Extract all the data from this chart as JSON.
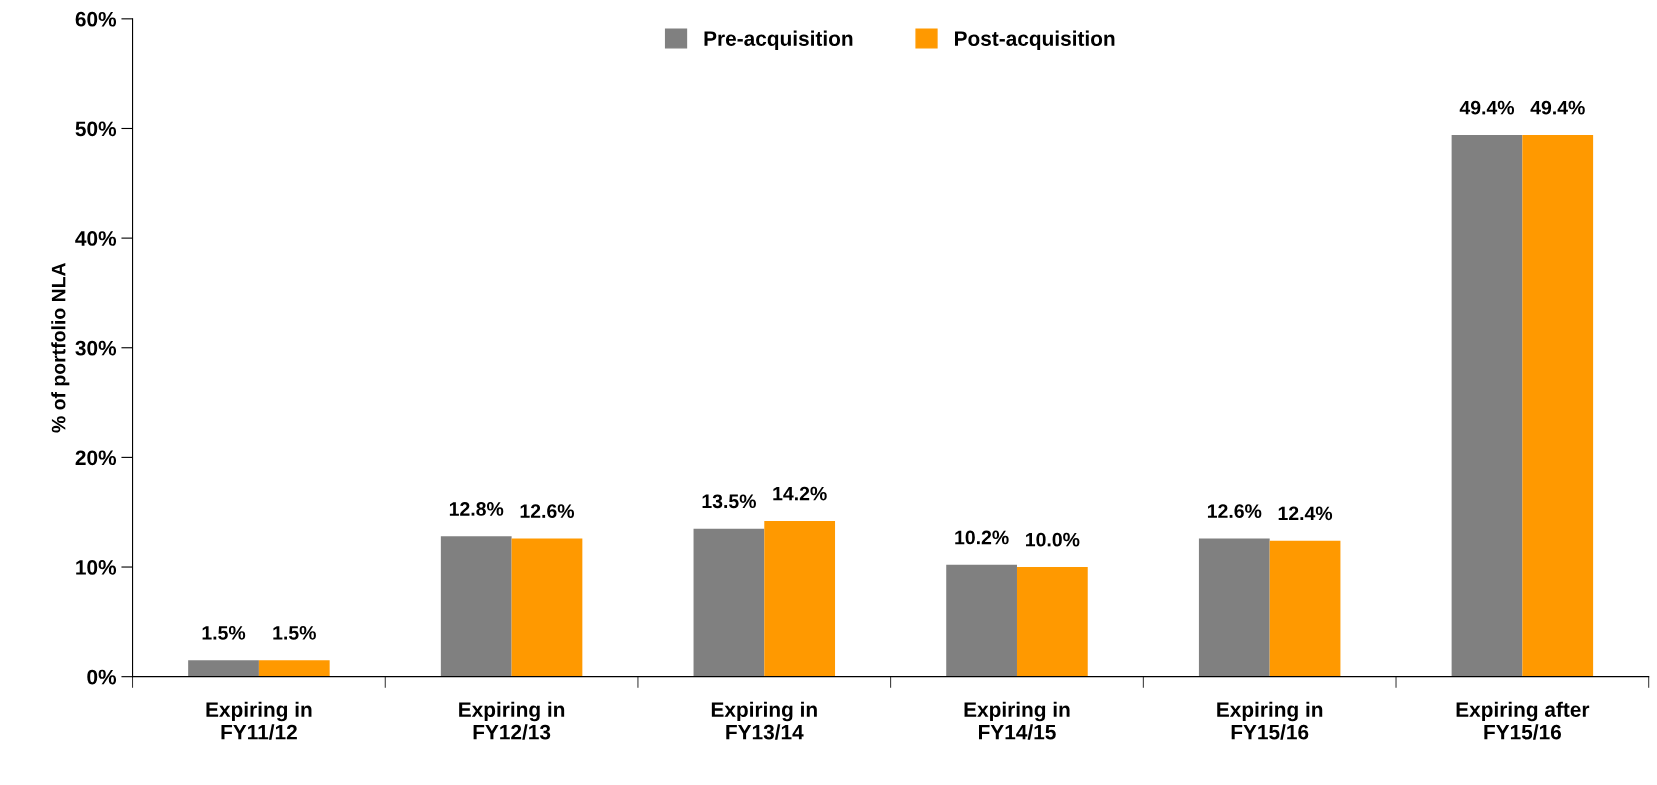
{
  "chart_data": {
    "type": "bar",
    "ylabel": "% of portfolio NLA",
    "categories": [
      "Expiring in\nFY11/12",
      "Expiring in\nFY12/13",
      "Expiring in\nFY13/14",
      "Expiring in\nFY14/15",
      "Expiring in\nFY15/16",
      "Expiring after\nFY15/16"
    ],
    "series": [
      {
        "name": "Pre-acquisition",
        "color": "#808080",
        "values": [
          1.5,
          12.8,
          13.5,
          10.2,
          12.6,
          49.4
        ],
        "value_labels": [
          "1.5%",
          "12.8%",
          "13.5%",
          "10.2%",
          "12.6%",
          "49.4%"
        ]
      },
      {
        "name": "Post-acquisition",
        "color": "#ff9900",
        "values": [
          1.5,
          12.6,
          14.2,
          10.0,
          12.4,
          49.4
        ],
        "value_labels": [
          "1.5%",
          "12.6%",
          "14.2%",
          "10.0%",
          "12.4%",
          "49.4%"
        ]
      }
    ],
    "ylim": [
      0,
      60
    ],
    "yticks": [
      {
        "value": 0,
        "label": "0%"
      },
      {
        "value": 10,
        "label": "10%"
      },
      {
        "value": 20,
        "label": "20%"
      },
      {
        "value": 30,
        "label": "30%"
      },
      {
        "value": 40,
        "label": "40%"
      },
      {
        "value": 50,
        "label": "50%"
      },
      {
        "value": 60,
        "label": "60%"
      }
    ],
    "legend": "top"
  }
}
